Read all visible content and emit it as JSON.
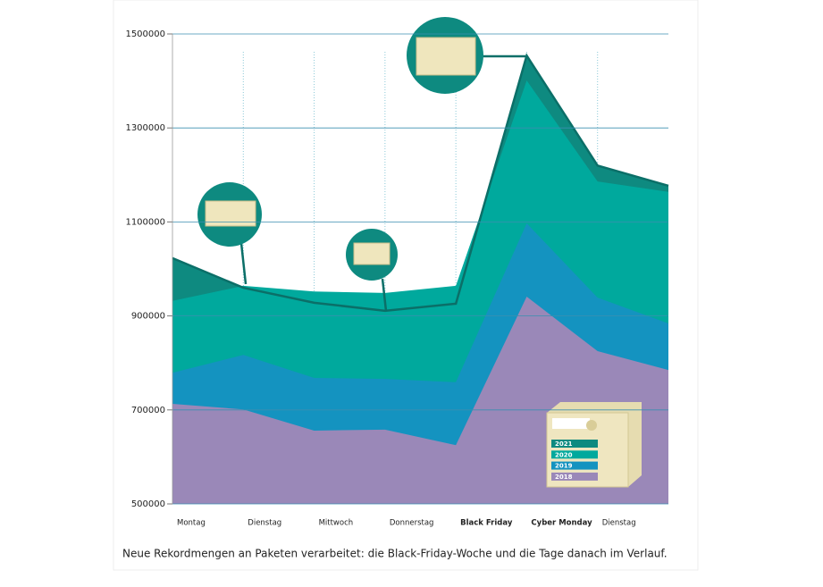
{
  "chart_data": {
    "type": "area",
    "caption": "Neue Rekordmengen an Paketen verarbeitet: die Black-Friday-Woche und die Tage danach im Verlauf.",
    "categories": [
      "Montag",
      "Dienstag",
      "Mittwoch",
      "Donnerstag",
      "Black Friday",
      "Cyber Monday",
      "Dienstag",
      null
    ],
    "bold_categories": [
      4,
      5
    ],
    "series": [
      {
        "name": "2021",
        "color": "#0e8a80",
        "values": [
          1023000,
          960000,
          928000,
          911000,
          926000,
          1454000,
          1220000,
          1177000
        ]
      },
      {
        "name": "2020",
        "color": "#00a99d",
        "values": [
          932000,
          964000,
          952000,
          949000,
          964000,
          1401000,
          1186000,
          1164000
        ]
      },
      {
        "name": "2019",
        "color": "#1493c0",
        "values": [
          779000,
          817000,
          768000,
          766000,
          759000,
          1097000,
          939000,
          884000
        ]
      },
      {
        "name": "2018",
        "color": "#9a88b8",
        "values": [
          713000,
          701000,
          656000,
          658000,
          625000,
          941000,
          825000,
          785000
        ]
      }
    ],
    "ylim": [
      500000,
      1500000
    ],
    "yticks": [
      500000,
      700000,
      900000,
      1100000,
      1300000,
      1500000
    ],
    "grid": true
  }
}
